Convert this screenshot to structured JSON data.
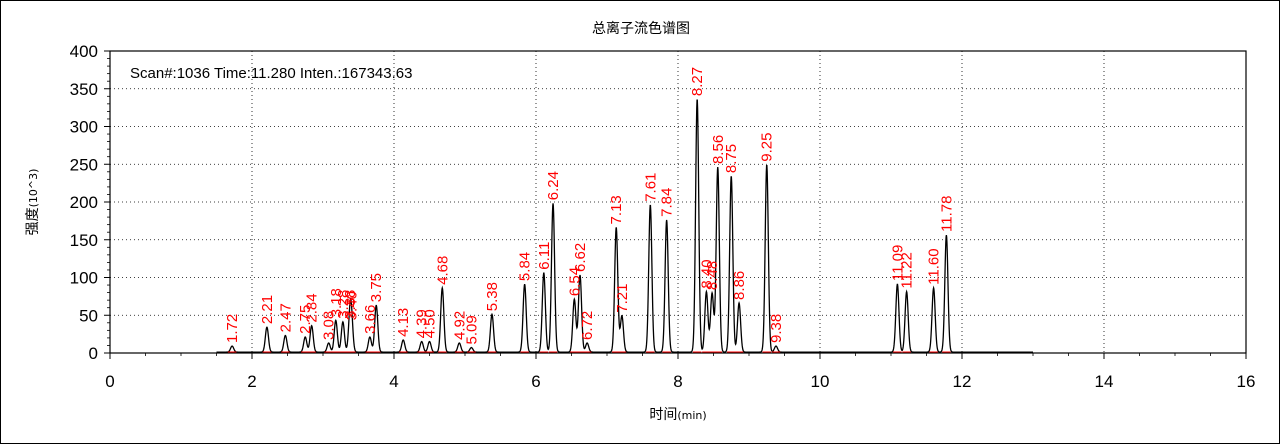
{
  "chart_data": {
    "type": "line",
    "title": "总离子流色谱图",
    "xlabel": "时间",
    "xlabel_unit": "(min)",
    "ylabel": "强度",
    "ylabel_unit": "(10^3)",
    "info": "Scan#:1036  Time:11.280  Inten.:167343.63",
    "xlim": [
      0,
      16
    ],
    "ylim": [
      0,
      400
    ],
    "xticks": [
      0,
      2,
      4,
      6,
      8,
      10,
      12,
      14,
      16
    ],
    "yticks": [
      0,
      50,
      100,
      150,
      200,
      250,
      300,
      350,
      400
    ],
    "grid": true,
    "trace_range": [
      1.5,
      13.0
    ],
    "peak_label_color": "#ff0000",
    "line_color": "#000000",
    "peaks": [
      {
        "label": "1.72",
        "x": 1.72,
        "y": 8
      },
      {
        "label": "2.21",
        "x": 2.21,
        "y": 33
      },
      {
        "label": "2.47",
        "x": 2.47,
        "y": 22
      },
      {
        "label": "2.75",
        "x": 2.75,
        "y": 20
      },
      {
        "label": "2.84",
        "x": 2.84,
        "y": 35
      },
      {
        "label": "3.08",
        "x": 3.08,
        "y": 12
      },
      {
        "label": "3.18",
        "x": 3.18,
        "y": 42
      },
      {
        "label": "3.28",
        "x": 3.28,
        "y": 40
      },
      {
        "label": "3.38",
        "x": 3.38,
        "y": 40
      },
      {
        "label": "3.40",
        "x": 3.4,
        "y": 38
      },
      {
        "label": "3.66",
        "x": 3.66,
        "y": 20
      },
      {
        "label": "3.75",
        "x": 3.75,
        "y": 62
      },
      {
        "label": "4.13",
        "x": 4.13,
        "y": 16
      },
      {
        "label": "4.39",
        "x": 4.39,
        "y": 14
      },
      {
        "label": "4.50",
        "x": 4.5,
        "y": 14
      },
      {
        "label": "4.68",
        "x": 4.68,
        "y": 85
      },
      {
        "label": "4.92",
        "x": 4.92,
        "y": 12
      },
      {
        "label": "5.09",
        "x": 5.09,
        "y": 6
      },
      {
        "label": "5.38",
        "x": 5.38,
        "y": 50
      },
      {
        "label": "5.84",
        "x": 5.84,
        "y": 90
      },
      {
        "label": "6.11",
        "x": 6.11,
        "y": 105
      },
      {
        "label": "6.24",
        "x": 6.24,
        "y": 197
      },
      {
        "label": "6.54",
        "x": 6.54,
        "y": 70
      },
      {
        "label": "6.62",
        "x": 6.62,
        "y": 102
      },
      {
        "label": "6.72",
        "x": 6.72,
        "y": 12
      },
      {
        "label": "7.13",
        "x": 7.13,
        "y": 165
      },
      {
        "label": "7.21",
        "x": 7.21,
        "y": 48
      },
      {
        "label": "7.61",
        "x": 7.61,
        "y": 195
      },
      {
        "label": "7.84",
        "x": 7.84,
        "y": 175
      },
      {
        "label": "8.27",
        "x": 8.27,
        "y": 335
      },
      {
        "label": "8.40",
        "x": 8.4,
        "y": 80
      },
      {
        "label": "8.48",
        "x": 8.48,
        "y": 78
      },
      {
        "label": "8.56",
        "x": 8.56,
        "y": 245
      },
      {
        "label": "8.75",
        "x": 8.75,
        "y": 233
      },
      {
        "label": "8.86",
        "x": 8.86,
        "y": 65
      },
      {
        "label": "9.25",
        "x": 9.25,
        "y": 248
      },
      {
        "label": "9.38",
        "x": 9.38,
        "y": 8
      },
      {
        "label": "11.09",
        "x": 11.09,
        "y": 90
      },
      {
        "label": "11.22",
        "x": 11.22,
        "y": 80
      },
      {
        "label": "11.60",
        "x": 11.6,
        "y": 85
      },
      {
        "label": "11.78",
        "x": 11.78,
        "y": 155
      }
    ]
  }
}
